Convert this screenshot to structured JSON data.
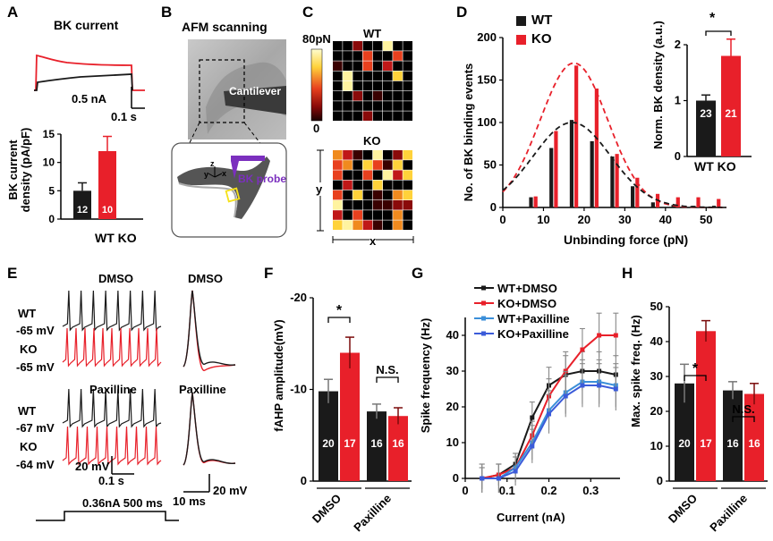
{
  "panels": {
    "A": "A",
    "B": "B",
    "C": "C",
    "D": "D",
    "E": "E",
    "F": "F",
    "G": "G",
    "H": "H"
  },
  "colors": {
    "wt": "#1a1a1a",
    "ko": "#e8202a",
    "wt_pax": "#3b8fd9",
    "ko_pax": "#3b5bd9"
  },
  "panelA": {
    "title": "BK current",
    "scale_current": "0.5 nA",
    "scale_time": "0.1 s",
    "ylabel_line1": "BK current",
    "ylabel_line2": "density  (pA/pF)",
    "xlabel": "WT KO",
    "chart_data": {
      "type": "bar",
      "categories": [
        "WT",
        "KO"
      ],
      "values": [
        5,
        12
      ],
      "errors": [
        1.4,
        2.6
      ],
      "n": [
        "12",
        "10"
      ],
      "ylim": [
        0,
        15
      ],
      "yticks": [
        "0",
        "5",
        "10",
        "15"
      ]
    }
  },
  "panelB": {
    "title": "AFM scanning",
    "cantilever": "Cantilever",
    "probe": "BK probe",
    "axis_x": "x",
    "axis_y": "y",
    "axis_z": "z"
  },
  "panelC": {
    "scale_max": "80pN",
    "scale_min": "0",
    "wt": "WT",
    "ko": "KO",
    "y": "y",
    "x": "x"
  },
  "panelD": {
    "legend_wt": "WT",
    "legend_ko": "KO",
    "ylabel": "No. of BK binding events",
    "xlabel": "Unbinding force (pN)",
    "chart_data": {
      "type": "bar",
      "x": [
        7.5,
        12.5,
        17.5,
        22.5,
        27.5,
        32.5,
        37.5,
        42.5,
        47.5,
        52.5
      ],
      "series": [
        {
          "name": "WT",
          "values": [
            12,
            70,
            103,
            78,
            60,
            25,
            6,
            3,
            2,
            2
          ]
        },
        {
          "name": "KO",
          "values": [
            13,
            90,
            167,
            140,
            63,
            35,
            16,
            12,
            12,
            10
          ]
        }
      ],
      "fit_peaks": {
        "WT": 100,
        "KO": 170
      },
      "xlim": [
        0,
        55
      ],
      "ylim": [
        0,
        200
      ],
      "xticks": [
        "0",
        "10",
        "20",
        "30",
        "40",
        "50"
      ],
      "yticks": [
        "0",
        "50",
        "100",
        "150",
        "200"
      ]
    },
    "inset": {
      "ylabel": "Norm. BK density (a.u.)",
      "xlabel": "WT KO",
      "star": "*",
      "chart_data": {
        "type": "bar",
        "categories": [
          "WT",
          "KO"
        ],
        "values": [
          1.0,
          1.8
        ],
        "errors": [
          0.1,
          0.3
        ],
        "n": [
          "23",
          "21"
        ],
        "ylim": [
          0,
          2
        ],
        "yticks": [
          "0",
          "1",
          "2"
        ]
      }
    }
  },
  "panelE": {
    "dmso": "DMSO",
    "dmso_right": "DMSO",
    "paxilline": "Paxilline",
    "paxilline_right": "Paxilline",
    "wt1": "WT",
    "v1": "-65 mV",
    "ko1": "KO",
    "v2": "-65 mV",
    "wt2": "WT",
    "v3": "-67 mV",
    "ko2": "KO",
    "v4": "-64 mV",
    "scale_v": "20 mV",
    "scale_t": "0.1 s",
    "stim": "0.36nA 500 ms",
    "scale_ms": "10 ms",
    "scale_mv2": "20 mV"
  },
  "panelF": {
    "ylabel": "fAHP amplitude(mV)",
    "star": "*",
    "ns": "N.S.",
    "groups": [
      "DMSO",
      "Paxilline"
    ],
    "chart_data": {
      "type": "bar",
      "categories": [
        "DMSO WT",
        "DMSO KO",
        "Paxilline WT",
        "Paxilline KO"
      ],
      "values": [
        -9.8,
        -14.0,
        -7.6,
        -7.1
      ],
      "errors": [
        1.3,
        1.7,
        0.8,
        0.9
      ],
      "n": [
        "20",
        "17",
        "16",
        "16"
      ],
      "ylim": [
        0,
        -20
      ],
      "yticks": [
        "0",
        "-10",
        "-20"
      ]
    }
  },
  "panelG": {
    "ylabel": "Spike frequency (Hz)",
    "xlabel": "Current (nA)",
    "legend": [
      "WT+DMSO",
      "KO+DMSO",
      "WT+Paxilline",
      "KO+Paxilline"
    ],
    "chart_data": {
      "type": "line",
      "x": [
        0.04,
        0.08,
        0.12,
        0.16,
        0.2,
        0.24,
        0.28,
        0.32,
        0.36
      ],
      "series": [
        {
          "name": "WT+DMSO",
          "values": [
            0,
            1,
            4,
            17,
            26,
            29,
            30,
            30,
            29
          ]
        },
        {
          "name": "KO+DMSO",
          "values": [
            0,
            1,
            3,
            12,
            23,
            30,
            36,
            40,
            40
          ]
        },
        {
          "name": "WT+Paxilline",
          "values": [
            0,
            0,
            3,
            10,
            19,
            24,
            27,
            27,
            26
          ]
        },
        {
          "name": "KO+Paxilline",
          "values": [
            0,
            0,
            2,
            9,
            18,
            23,
            26,
            26,
            25
          ]
        }
      ],
      "xlim": [
        0,
        0.37
      ],
      "ylim": [
        0,
        45
      ],
      "xticks": [
        "0",
        "0.1",
        "0.2",
        "0.3"
      ],
      "yticks": [
        "0",
        "10",
        "20",
        "30",
        "40"
      ]
    }
  },
  "panelH": {
    "ylabel": "Max. spike freq. (Hz)",
    "star": "*",
    "ns": "N.S.",
    "groups": [
      "DMSO",
      "Paxilline"
    ],
    "chart_data": {
      "type": "bar",
      "categories": [
        "DMSO WT",
        "DMSO KO",
        "Paxilline WT",
        "Paxilline KO"
      ],
      "values": [
        28,
        43,
        26,
        25
      ],
      "errors": [
        5.5,
        3,
        2.5,
        3
      ],
      "n": [
        "20",
        "17",
        "16",
        "16"
      ],
      "ylim": [
        0,
        50
      ],
      "yticks": [
        "0",
        "10",
        "20",
        "30",
        "40",
        "50"
      ]
    }
  }
}
